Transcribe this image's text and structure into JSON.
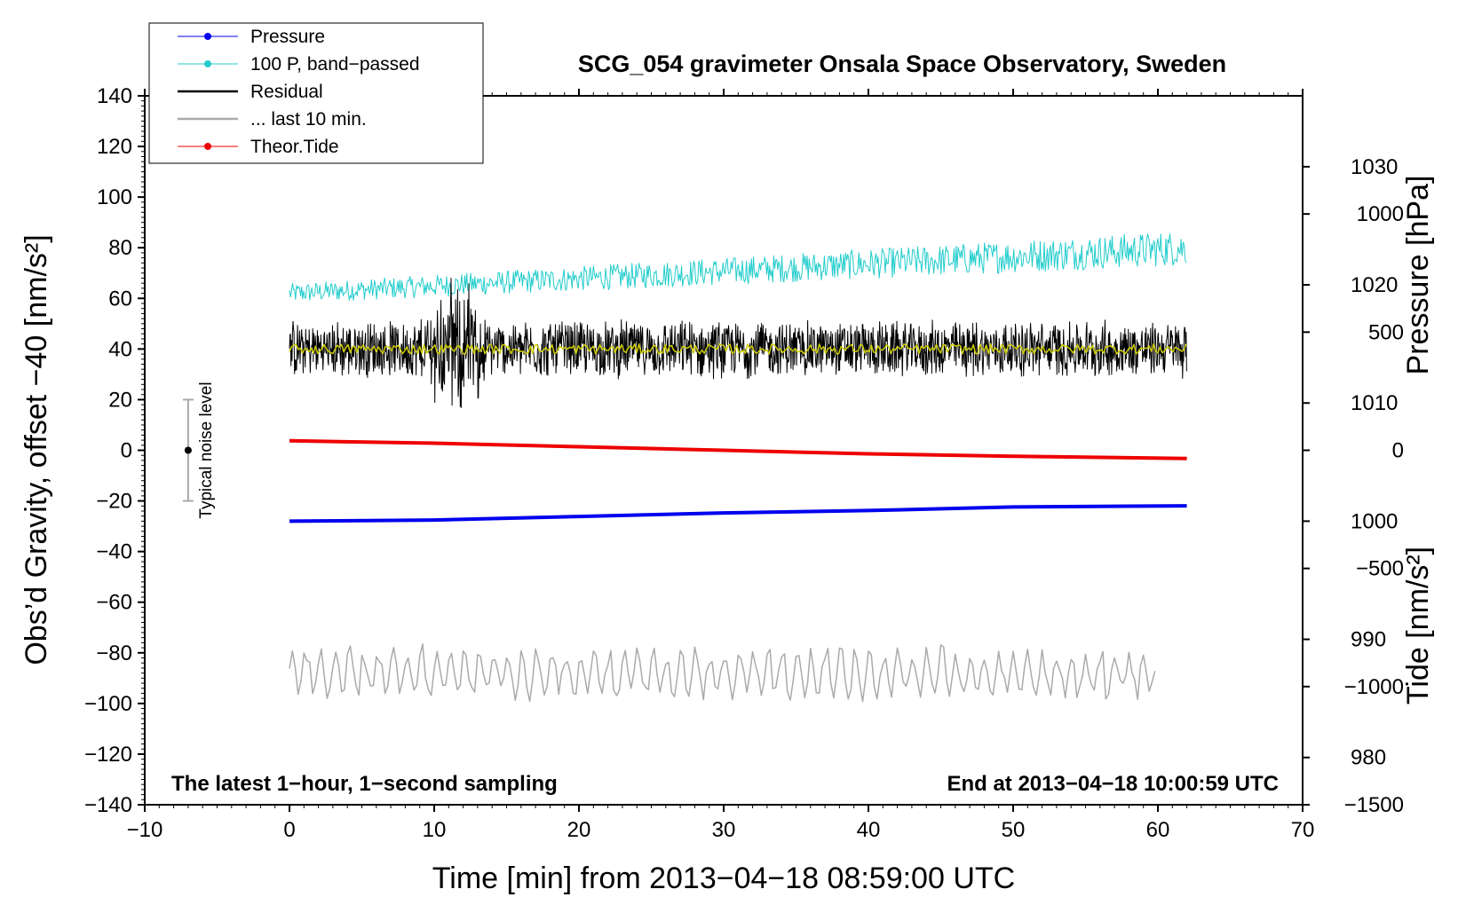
{
  "chart_data": {
    "type": "line",
    "title": "SCG_054 gravimeter Onsala Space Observatory, Sweden",
    "xlabel": "Time [min] from 2013−04−18 08:59:00 UTC",
    "ylabel_left": "Obs’d Gravity, offset −40 [nm/s²]",
    "ylabel_right_top": "Pressure [hPa]",
    "ylabel_right_bottom": "Tide [nm/s²]",
    "xlim": [
      -10,
      70
    ],
    "ylim": [
      -140,
      140
    ],
    "pressure_axis_range": [
      976,
      1036
    ],
    "tide_axis_range": [
      -1500,
      1500
    ],
    "x_ticks": [
      "−10",
      "0",
      "10",
      "20",
      "30",
      "40",
      "50",
      "60",
      "70"
    ],
    "y_ticks_left": [
      "140",
      "120",
      "100",
      "80",
      "60",
      "40",
      "20",
      "0",
      "−20",
      "−40",
      "−60",
      "−80",
      "−100",
      "−120",
      "−140"
    ],
    "y_ticks_pressure": [
      "1030",
      "1020",
      "1010",
      "1000",
      "990",
      "980"
    ],
    "y_ticks_tide": [
      "1000",
      "500",
      "0",
      "−500",
      "−1000",
      "−1500"
    ],
    "legend": {
      "entries": [
        {
          "label": "Pressure",
          "color": "#0000ee",
          "marker": "dot"
        },
        {
          "label": "100 P, band−passed",
          "color": "#22cccc",
          "marker": "dot"
        },
        {
          "label": "Residual",
          "color": "#000000",
          "marker": "none"
        },
        {
          "label": "... last 10 min.",
          "color": "#aaaaaa",
          "marker": "none"
        },
        {
          "label": "Theor.Tide",
          "color": "#ee0000",
          "marker": "dot"
        }
      ],
      "position": "top-left"
    },
    "series": [
      {
        "name": "Pressure",
        "axis": "pressure",
        "color": "#0000ee",
        "x": [
          0,
          10,
          20,
          30,
          40,
          50,
          62
        ],
        "y": [
          1000.0,
          1000.1,
          1000.4,
          1000.7,
          1000.9,
          1001.2,
          1001.3
        ]
      },
      {
        "name": "100 P, band−passed",
        "axis": "left",
        "color": "#22cccc",
        "x_range": [
          0,
          62
        ],
        "mean_start": 62,
        "mean_end": 80,
        "amplitude": 7
      },
      {
        "name": "Residual",
        "axis": "left",
        "color": "#000000",
        "x_range": [
          0,
          62
        ],
        "mean": 40,
        "amplitude": 12,
        "burst_at": 11.5,
        "burst_amplitude": 30
      },
      {
        "name": "Residual smoothed",
        "axis": "left",
        "color": "#cccc00",
        "x_range": [
          0,
          62
        ],
        "mean": 40,
        "amplitude": 2
      },
      {
        "name": "... last 10 min.",
        "axis": "left",
        "color": "#aaaaaa",
        "x_range": [
          0,
          60
        ],
        "mean": -88,
        "amplitude": 12
      },
      {
        "name": "Theor.Tide",
        "axis": "tide",
        "color": "#ee0000",
        "x": [
          0,
          10,
          20,
          30,
          40,
          50,
          62
        ],
        "y": [
          40,
          30,
          15,
          0,
          -15,
          -25,
          -35
        ]
      }
    ],
    "noise_bar": {
      "label": "Typical noise level",
      "x": -7,
      "center": 0,
      "low": -20,
      "high": 20
    },
    "annotations": {
      "bottom_left": "The latest 1−hour, 1−second sampling",
      "bottom_right": "End at 2013−04−18 10:00:59 UTC"
    }
  }
}
